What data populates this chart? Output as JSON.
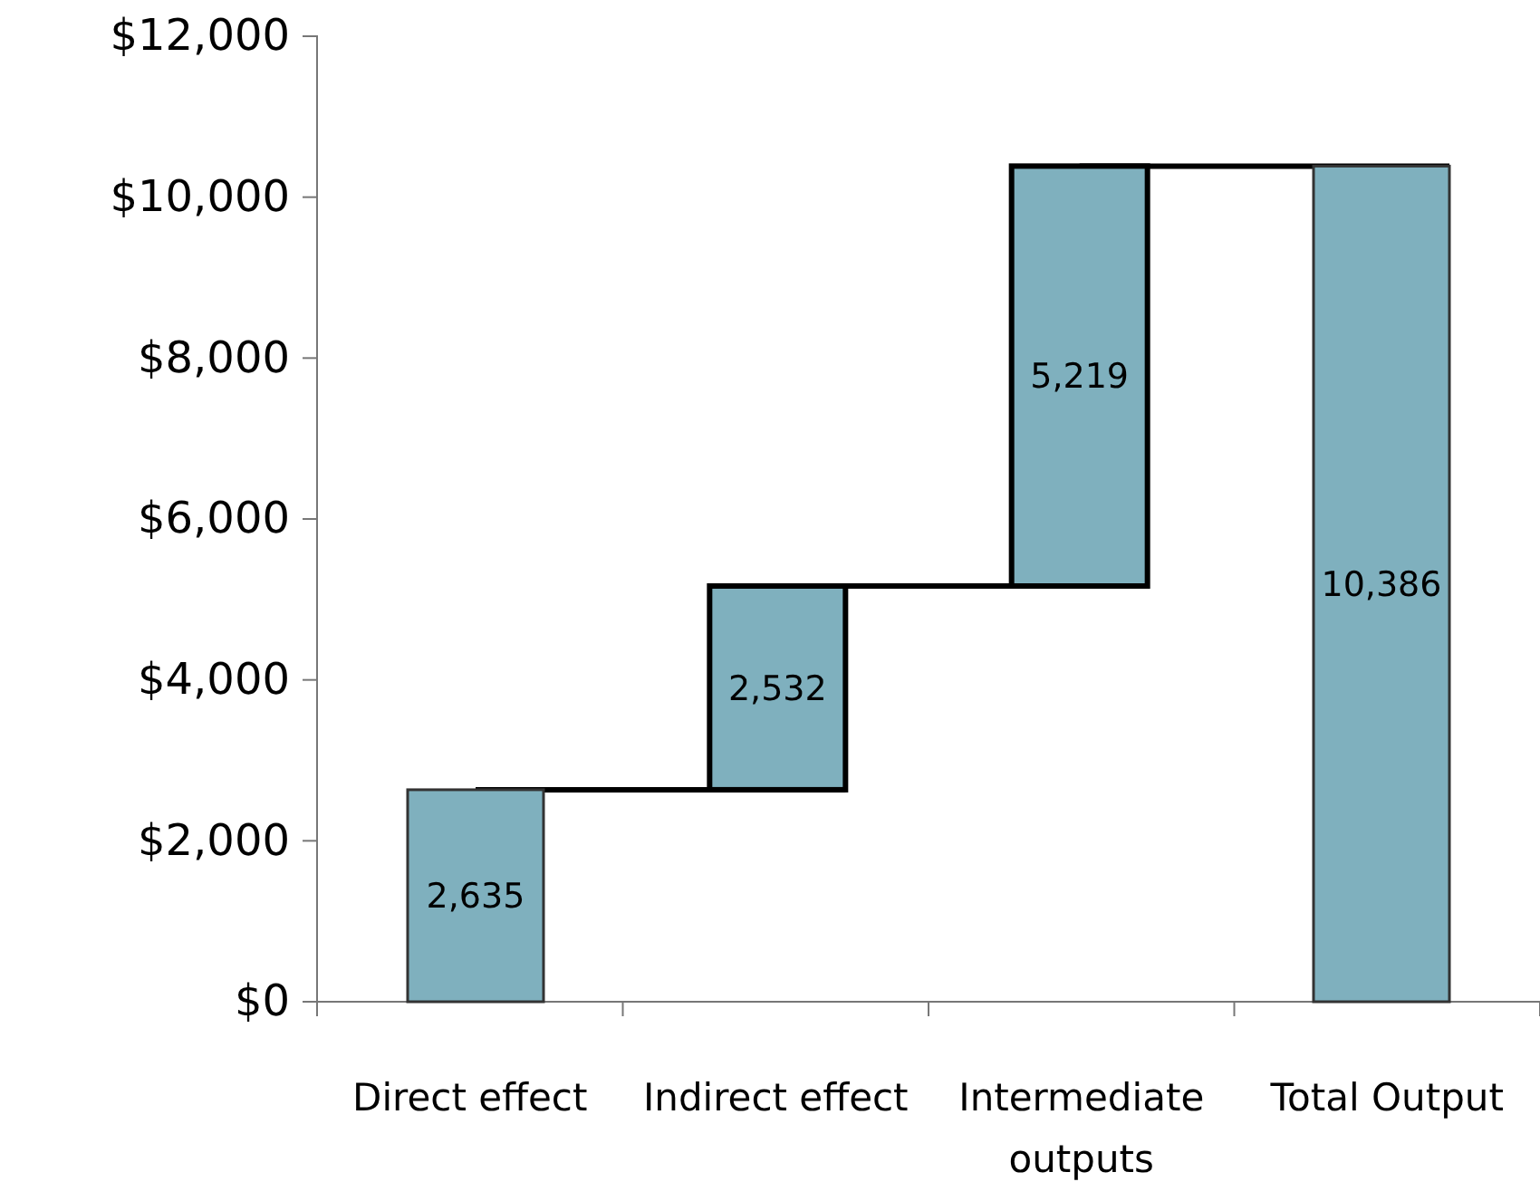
{
  "chart_data": {
    "type": "bar",
    "categories": [
      "Direct effect",
      "Indirect effect",
      "Intermediate outputs",
      "Total Output"
    ],
    "values": [
      2635,
      2532,
      5219,
      10386
    ],
    "base": [
      0,
      2635,
      5167,
      0
    ],
    "color": "#7fb0be",
    "ylim": [
      0,
      12000
    ],
    "yticks": [
      {
        "value": 0,
        "label": "$0"
      },
      {
        "value": 2000,
        "label": "$2,000"
      },
      {
        "value": 4000,
        "label": "$4,000"
      },
      {
        "value": 6000,
        "label": "$6,000"
      },
      {
        "value": 8000,
        "label": "$8,000"
      },
      {
        "value": 10000,
        "label": "$10,000"
      },
      {
        "value": 12000,
        "label": "$12,000"
      }
    ],
    "value_labels": [
      "2,635",
      "2,532",
      "5,219",
      "10,386"
    ],
    "grid": false
  }
}
